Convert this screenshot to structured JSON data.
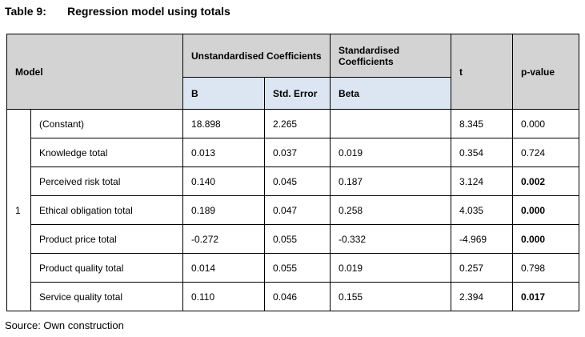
{
  "caption": {
    "label": "Table 9:",
    "text": "Regression model using totals"
  },
  "source": "Source: Own construction",
  "colors": {
    "header_gray": "#d3d3d3",
    "subheader_blue": "#dce6f2",
    "border": "#000000",
    "background": "#ffffff"
  },
  "table": {
    "headers": {
      "model": "Model",
      "unstandardised": "Unstandardised Coefficients",
      "standardised": "Standardised Coefficients",
      "t": "t",
      "pvalue": "p-value",
      "b": "B",
      "std_error": "Std. Error",
      "beta": "Beta"
    },
    "model_number": "1",
    "rows": [
      {
        "name": "(Constant)",
        "b": "18.898",
        "se": "2.265",
        "beta": "",
        "t": "8.345",
        "p": "0.000",
        "p_bold": false
      },
      {
        "name": "Knowledge total",
        "b": "0.013",
        "se": "0.037",
        "beta": "0.019",
        "t": "0.354",
        "p": "0.724",
        "p_bold": false
      },
      {
        "name": "Perceived risk total",
        "b": "0.140",
        "se": "0.045",
        "beta": "0.187",
        "t": "3.124",
        "p": "0.002",
        "p_bold": true
      },
      {
        "name": "Ethical obligation total",
        "b": "0.189",
        "se": "0.047",
        "beta": "0.258",
        "t": "4.035",
        "p": "0.000",
        "p_bold": true
      },
      {
        "name": "Product price total",
        "b": "-0.272",
        "se": "0.055",
        "beta": "-0.332",
        "t": "-4.969",
        "p": "0.000",
        "p_bold": true
      },
      {
        "name": "Product quality total",
        "b": "0.014",
        "se": "0.055",
        "beta": "0.019",
        "t": "0.257",
        "p": "0.798",
        "p_bold": false
      },
      {
        "name": "Service quality total",
        "b": "0.110",
        "se": "0.046",
        "beta": "0.155",
        "t": "2.394",
        "p": "0.017",
        "p_bold": true
      }
    ]
  }
}
